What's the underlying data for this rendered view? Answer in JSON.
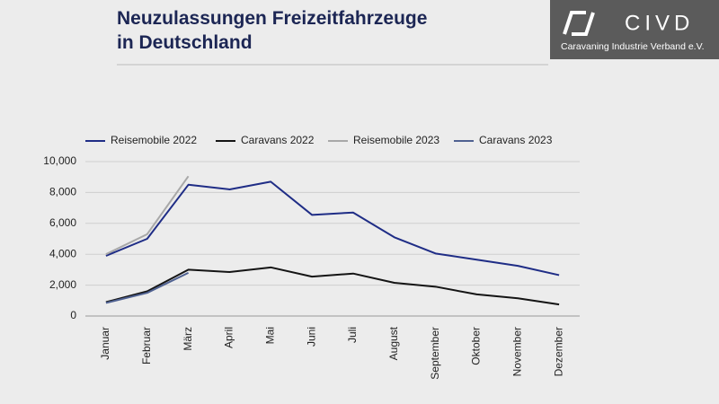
{
  "logo": {
    "name": "CIVD",
    "subtitle": "Caravaning Industrie Verband e.V."
  },
  "chart_data": {
    "type": "line",
    "title": "Neuzulassungen Freizeitfahrzeuge",
    "subtitle": "in Deutschland",
    "categories": [
      "Januar",
      "Februar",
      "März",
      "April",
      "Mai",
      "Juni",
      "Juli",
      "August",
      "September",
      "Oktober",
      "November",
      "Dezember"
    ],
    "series": [
      {
        "name": "Reisemobile 2022",
        "color": "#1f2d86",
        "values": [
          3900,
          5000,
          8500,
          8200,
          8700,
          6550,
          6700,
          5100,
          4050,
          3650,
          3250,
          2650
        ]
      },
      {
        "name": "Caravans 2022",
        "color": "#141414",
        "values": [
          900,
          1600,
          3000,
          2850,
          3150,
          2550,
          2750,
          2150,
          1900,
          1400,
          1150,
          750
        ]
      },
      {
        "name": "Reisemobile 2023",
        "color": "#a8a8a8",
        "values": [
          4000,
          5300,
          9050,
          null,
          null,
          null,
          null,
          null,
          null,
          null,
          null,
          null
        ]
      },
      {
        "name": "Caravans 2023",
        "color": "#4f6191",
        "values": [
          850,
          1500,
          2800,
          null,
          null,
          null,
          null,
          null,
          null,
          null,
          null,
          null
        ]
      }
    ],
    "ylim": [
      0,
      10000
    ],
    "yticks": [
      0,
      {
        "value": 2000,
        "label": "2,000"
      },
      {
        "value": 4000,
        "label": "4,000"
      },
      {
        "value": 6000,
        "label": "6,000"
      },
      {
        "value": 8000,
        "label": "8,000"
      },
      {
        "value": 10000,
        "label": "10,000"
      }
    ],
    "grid": true,
    "legend": "top"
  }
}
